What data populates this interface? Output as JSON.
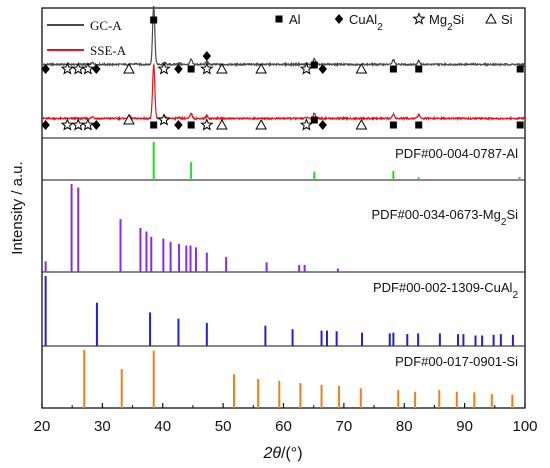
{
  "chart_data": {
    "type": "line",
    "xlabel_var": "2θ",
    "xlabel_unit": "/(°)",
    "ylabel": "Intensity / a.u.",
    "xlim": [
      20,
      100
    ],
    "xticks": [
      "20",
      "30",
      "40",
      "50",
      "60",
      "70",
      "80",
      "90",
      "100"
    ],
    "patterns": [
      {
        "name": "GC-A",
        "color": "#4a4a4a",
        "baseline": 0.42,
        "peaks": [
          [
            38.5,
            3.3
          ],
          [
            44.7,
            0.28
          ],
          [
            65.1,
            0.32
          ],
          [
            78.2,
            0.26
          ],
          [
            82.4,
            0.22
          ],
          [
            28.4,
            0.1
          ],
          [
            40.3,
            0.1
          ],
          [
            47.3,
            0.16
          ],
          [
            42.6,
            0.08
          ],
          [
            35.5,
            0.05
          ],
          [
            63.8,
            0.06
          ]
        ]
      },
      {
        "name": "SSE-A",
        "color": "#e8141c",
        "baseline": 0.42,
        "peaks": [
          [
            38.5,
            3.0
          ],
          [
            44.7,
            0.27
          ],
          [
            65.1,
            0.3
          ],
          [
            78.2,
            0.24
          ],
          [
            82.4,
            0.2
          ],
          [
            28.4,
            0.1
          ],
          [
            40.3,
            0.1
          ],
          [
            47.3,
            0.14
          ],
          [
            34.5,
            0.14
          ],
          [
            42.6,
            0.06
          ],
          [
            63.8,
            0.06
          ]
        ]
      }
    ],
    "phase_legend": [
      {
        "symbol": "filled-square",
        "label": "Al"
      },
      {
        "symbol": "filled-diamond",
        "label": "CuAl",
        "sub": "2"
      },
      {
        "symbol": "open-star",
        "label": "Mg",
        "sub": "2",
        "label2": "Si"
      },
      {
        "symbol": "open-triangle",
        "label": "Si"
      }
    ],
    "phase_markers": {
      "GC-A": [
        {
          "x": 38.5,
          "symbol": "filled-square",
          "top": true
        },
        {
          "x": 20.6,
          "symbol": "filled-diamond"
        },
        {
          "x": 24.2,
          "symbol": "open-star"
        },
        {
          "x": 26.0,
          "symbol": "open-star"
        },
        {
          "x": 27.6,
          "symbol": "open-star"
        },
        {
          "x": 29.0,
          "symbol": "filled-diamond"
        },
        {
          "x": 34.4,
          "symbol": "open-triangle"
        },
        {
          "x": 40.2,
          "symbol": "open-star"
        },
        {
          "x": 42.6,
          "symbol": "filled-diamond"
        },
        {
          "x": 44.7,
          "symbol": "filled-square"
        },
        {
          "x": 47.3,
          "symbol": "open-star"
        },
        {
          "x": 47.3,
          "symbol": "filled-diamond",
          "stacked": true
        },
        {
          "x": 49.8,
          "symbol": "open-triangle"
        },
        {
          "x": 56.3,
          "symbol": "open-triangle"
        },
        {
          "x": 63.8,
          "symbol": "open-star"
        },
        {
          "x": 65.1,
          "symbol": "filled-square"
        },
        {
          "x": 66.5,
          "symbol": "filled-diamond"
        },
        {
          "x": 72.9,
          "symbol": "open-triangle"
        },
        {
          "x": 78.2,
          "symbol": "filled-square"
        },
        {
          "x": 82.4,
          "symbol": "filled-square"
        },
        {
          "x": 99.2,
          "symbol": "filled-square"
        }
      ],
      "SSE-A": [
        {
          "x": 20.6,
          "symbol": "filled-diamond"
        },
        {
          "x": 24.2,
          "symbol": "open-star"
        },
        {
          "x": 26.0,
          "symbol": "open-star"
        },
        {
          "x": 27.6,
          "symbol": "open-star"
        },
        {
          "x": 29.0,
          "symbol": "filled-diamond"
        },
        {
          "x": 34.4,
          "symbol": "open-triangle"
        },
        {
          "x": 38.5,
          "symbol": "filled-square"
        },
        {
          "x": 40.2,
          "symbol": "open-star"
        },
        {
          "x": 42.6,
          "symbol": "filled-diamond"
        },
        {
          "x": 44.7,
          "symbol": "filled-square"
        },
        {
          "x": 47.3,
          "symbol": "open-star"
        },
        {
          "x": 49.8,
          "symbol": "open-triangle"
        },
        {
          "x": 56.3,
          "symbol": "open-triangle"
        },
        {
          "x": 63.8,
          "symbol": "open-star"
        },
        {
          "x": 65.1,
          "symbol": "filled-square"
        },
        {
          "x": 66.5,
          "symbol": "filled-diamond"
        },
        {
          "x": 72.9,
          "symbol": "open-triangle"
        },
        {
          "x": 78.2,
          "symbol": "filled-square"
        },
        {
          "x": 82.4,
          "symbol": "filled-square"
        },
        {
          "x": 99.2,
          "symbol": "filled-square"
        }
      ]
    },
    "references": [
      {
        "label": "PDF#00-004-0787-Al",
        "color": "#22dd22",
        "positions": [
          38.5,
          44.7,
          65.1,
          78.2,
          82.4,
          99.1
        ],
        "intensities": [
          100,
          47,
          22,
          24,
          7,
          8
        ]
      },
      {
        "label_main": "PDF#00-034-0673-Mg",
        "label_sub": "2",
        "label_tail": "Si",
        "color": "#8a2be2",
        "positions": [
          20.6,
          24.9,
          26.0,
          33.0,
          36.3,
          37.3,
          38.1,
          40.1,
          41.3,
          42.7,
          43.9,
          44.6,
          45.5,
          47.3,
          50.5,
          57.2,
          62.6,
          63.5,
          69.0
        ],
        "intensities": [
          12,
          100,
          96,
          60,
          50,
          46,
          40,
          38,
          34,
          32,
          30,
          30,
          28,
          22,
          17,
          11,
          8,
          8,
          4
        ]
      },
      {
        "label_main": "PDF#00-002-1309-CuAl",
        "label_sub": "2",
        "color": "#1f1fdd",
        "positions": [
          20.6,
          29.1,
          37.9,
          42.6,
          47.3,
          57.0,
          61.5,
          66.3,
          67.2,
          68.8,
          73.0,
          77.6,
          78.2,
          80.5,
          82.3,
          85.9,
          88.9,
          89.8,
          91.8,
          92.9,
          94.8,
          96.0,
          98.0
        ],
        "intensities": [
          100,
          62,
          48,
          39,
          33,
          29,
          24,
          22,
          22,
          21,
          19,
          18,
          19,
          17,
          18,
          18,
          17,
          17,
          15,
          15,
          16,
          17,
          16
        ]
      },
      {
        "label": "PDF#00-017-0901-Si",
        "color": "#ef7f1a",
        "positions": [
          27.0,
          33.2,
          38.5,
          51.8,
          55.8,
          59.3,
          62.8,
          66.3,
          69.2,
          72.8,
          79.0,
          81.8,
          85.8,
          88.7,
          91.6,
          94.5,
          97.9
        ],
        "intensities": [
          100,
          67,
          99,
          58,
          50,
          47,
          43,
          40,
          38,
          34,
          31,
          28,
          31,
          28,
          27,
          24,
          23
        ]
      }
    ]
  }
}
